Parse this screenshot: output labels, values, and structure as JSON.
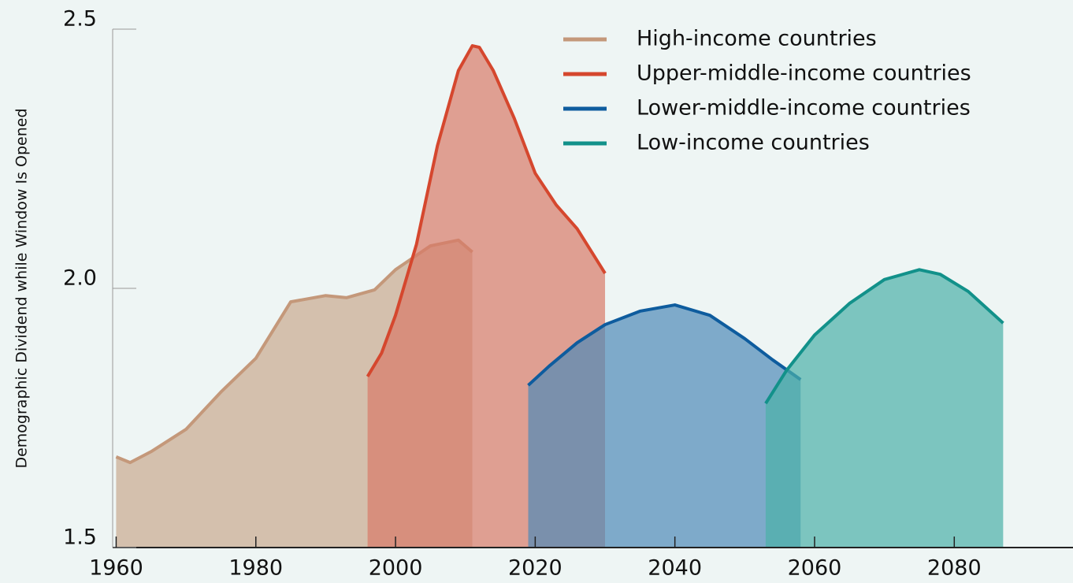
{
  "chart_data": {
    "type": "area",
    "y_label": "Demographic Dividend while Window Is Opened",
    "xlim": [
      1959.5,
      2097
    ],
    "xticks": [
      1960,
      1980,
      2000,
      2020,
      2040,
      2060,
      2080
    ],
    "ylim": [
      1.5,
      2.5
    ],
    "yticks": [
      1.5,
      {
        "value": 2,
        "label": "2.0"
      },
      2.5
    ],
    "legend": "top-right",
    "series": [
      {
        "name": "High-income countries",
        "color": "#c4987a",
        "fill": "#c9a98f",
        "x": [
          1960,
          1962,
          1965,
          1970,
          1975,
          1980,
          1985,
          1990,
          1993,
          1997,
          2000,
          2005,
          2009,
          2011
        ],
        "values": [
          1.675,
          1.664,
          1.685,
          1.728,
          1.8,
          1.865,
          1.974,
          1.986,
          1.982,
          1.997,
          2.036,
          2.082,
          2.093,
          2.07
        ]
      },
      {
        "name": "Upper-middle-income countries",
        "color": "#d5472e",
        "fill": "#d87a68",
        "x": [
          1996,
          1998,
          2000,
          2003,
          2006,
          2009,
          2011,
          2012,
          2014,
          2017,
          2020,
          2023,
          2026,
          2030
        ],
        "values": [
          1.83,
          1.875,
          1.948,
          2.085,
          2.275,
          2.42,
          2.468,
          2.465,
          2.42,
          2.328,
          2.222,
          2.161,
          2.115,
          2.029
        ]
      },
      {
        "name": "Lower-middle-income countries",
        "color": "#0e5c9e",
        "fill": "#4f8ab8",
        "x": [
          2019,
          2022,
          2026,
          2030,
          2035,
          2040,
          2045,
          2050,
          2054,
          2058
        ],
        "values": [
          1.813,
          1.85,
          1.895,
          1.93,
          1.956,
          1.968,
          1.948,
          1.903,
          1.862,
          1.824
        ]
      },
      {
        "name": "Low-income countries",
        "color": "#12918a",
        "fill": "#4bb0a8",
        "x": [
          2053,
          2056,
          2060,
          2065,
          2070,
          2075,
          2078,
          2082,
          2087
        ],
        "values": [
          1.778,
          1.842,
          1.91,
          1.971,
          2.017,
          2.036,
          2.027,
          1.994,
          1.933
        ]
      }
    ]
  }
}
